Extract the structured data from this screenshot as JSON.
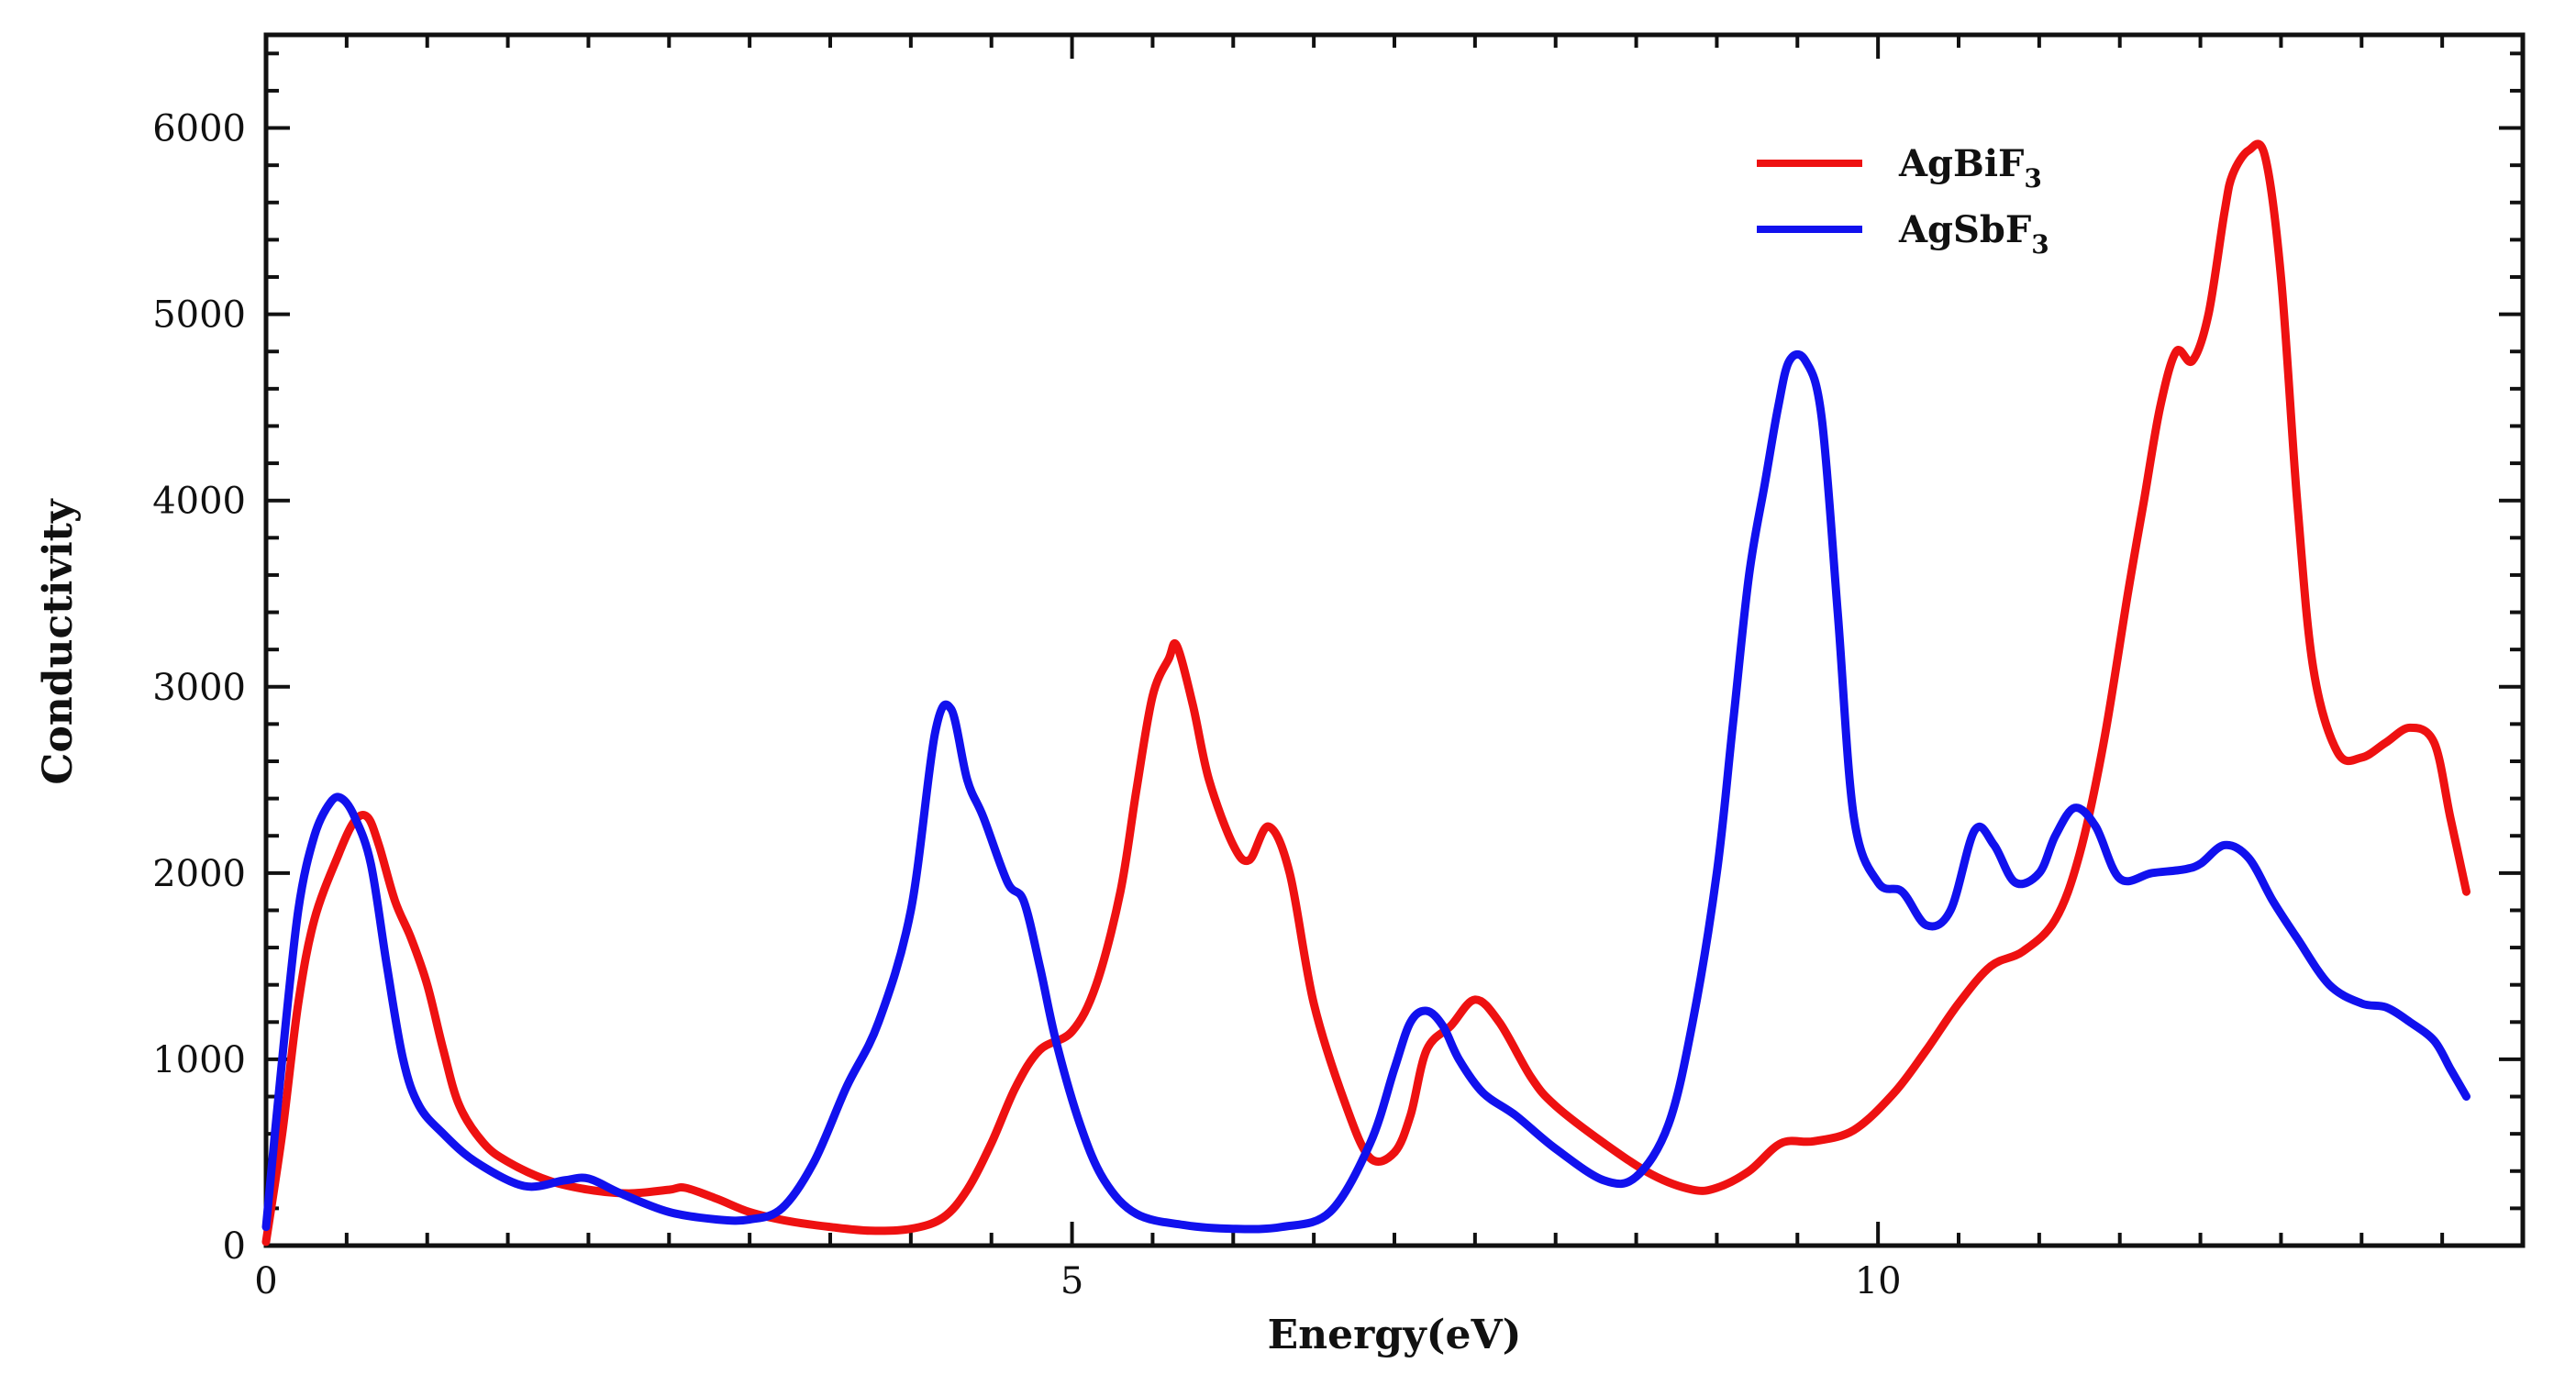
{
  "chart_data": {
    "type": "line",
    "title": "",
    "xlabel": "Energy(eV)",
    "ylabel": "Conductivity",
    "xlim": [
      0,
      14
    ],
    "ylim": [
      0,
      6500
    ],
    "xticks": [
      0,
      5,
      10
    ],
    "yticks": [
      0,
      1000,
      2000,
      3000,
      4000,
      5000,
      6000
    ],
    "xtick_labels": [
      "0",
      "5",
      "10"
    ],
    "ytick_labels": [
      "0",
      "1000",
      "2000",
      "3000",
      "4000",
      "5000",
      "6000"
    ],
    "grid": false,
    "legend_position": "top-right",
    "series": [
      {
        "name": "AgBiF3",
        "label_main": "AgBiF",
        "label_sub": "3",
        "color": "#ee1111",
        "x": [
          0,
          0.1,
          0.2,
          0.3,
          0.45,
          0.55,
          0.63,
          0.7,
          0.8,
          0.9,
          1.0,
          1.1,
          1.2,
          1.35,
          1.5,
          1.75,
          2.0,
          2.25,
          2.5,
          2.6,
          2.8,
          3.0,
          3.25,
          3.5,
          3.75,
          4.0,
          4.2,
          4.35,
          4.5,
          4.65,
          4.8,
          5.0,
          5.15,
          5.3,
          5.4,
          5.5,
          5.6,
          5.65,
          5.75,
          5.85,
          6.0,
          6.1,
          6.22,
          6.35,
          6.5,
          6.7,
          6.85,
          7.0,
          7.1,
          7.2,
          7.35,
          7.5,
          7.65,
          7.85,
          8.0,
          8.3,
          8.6,
          8.85,
          9.0,
          9.2,
          9.4,
          9.6,
          9.85,
          10.1,
          10.3,
          10.5,
          10.7,
          10.9,
          11.1,
          11.25,
          11.4,
          11.55,
          11.65,
          11.75,
          11.85,
          11.95,
          12.05,
          12.15,
          12.2,
          12.3,
          12.4,
          12.5,
          12.6,
          12.7,
          12.85,
          13.0,
          13.15,
          13.3,
          13.45,
          13.55,
          13.65
        ],
        "y": [
          20,
          600,
          1300,
          1750,
          2100,
          2280,
          2300,
          2150,
          1850,
          1650,
          1400,
          1050,
          750,
          550,
          450,
          350,
          300,
          280,
          300,
          310,
          250,
          180,
          130,
          100,
          80,
          90,
          150,
          300,
          550,
          850,
          1050,
          1150,
          1400,
          1900,
          2450,
          2950,
          3150,
          3220,
          2900,
          2500,
          2150,
          2070,
          2250,
          2000,
          1300,
          750,
          470,
          500,
          700,
          1050,
          1180,
          1320,
          1200,
          900,
          750,
          550,
          380,
          300,
          310,
          400,
          550,
          560,
          620,
          820,
          1050,
          1300,
          1500,
          1580,
          1750,
          2100,
          2700,
          3500,
          4000,
          4500,
          4800,
          4750,
          5000,
          5550,
          5750,
          5880,
          5850,
          5200,
          4000,
          3100,
          2650,
          2620,
          2700,
          2780,
          2700,
          2300,
          1900
        ]
      },
      {
        "name": "AgSbF3",
        "label_main": "AgSbF",
        "label_sub": "3",
        "color": "#1111ee",
        "x": [
          0,
          0.1,
          0.2,
          0.3,
          0.4,
          0.47,
          0.55,
          0.65,
          0.75,
          0.85,
          0.95,
          1.1,
          1.3,
          1.6,
          1.85,
          2.0,
          2.2,
          2.5,
          2.8,
          3.0,
          3.2,
          3.4,
          3.6,
          3.8,
          4.0,
          4.15,
          4.25,
          4.35,
          4.45,
          4.6,
          4.7,
          4.8,
          4.9,
          5.05,
          5.2,
          5.4,
          5.7,
          6.0,
          6.3,
          6.6,
          6.85,
          7.0,
          7.1,
          7.2,
          7.3,
          7.4,
          7.55,
          7.75,
          8.0,
          8.3,
          8.5,
          8.7,
          8.85,
          9.0,
          9.1,
          9.2,
          9.3,
          9.38,
          9.45,
          9.55,
          9.65,
          9.75,
          9.85,
          10.0,
          10.15,
          10.3,
          10.45,
          10.6,
          10.72,
          10.85,
          11.0,
          11.1,
          11.22,
          11.35,
          11.5,
          11.7,
          11.9,
          12.0,
          12.15,
          12.3,
          12.45,
          12.6,
          12.8,
          13.0,
          13.15,
          13.3,
          13.45,
          13.55,
          13.65
        ],
        "y": [
          100,
          1000,
          1800,
          2200,
          2380,
          2400,
          2300,
          2050,
          1500,
          1000,
          750,
          600,
          450,
          320,
          350,
          360,
          280,
          180,
          140,
          140,
          200,
          450,
          850,
          1200,
          1800,
          2750,
          2880,
          2500,
          2300,
          1950,
          1850,
          1500,
          1100,
          650,
          350,
          170,
          110,
          90,
          100,
          180,
          550,
          950,
          1200,
          1260,
          1180,
          1000,
          820,
          700,
          520,
          350,
          370,
          650,
          1200,
          2000,
          2800,
          3600,
          4100,
          4500,
          4750,
          4750,
          4450,
          3400,
          2300,
          1950,
          1900,
          1720,
          1800,
          2230,
          2150,
          1950,
          2000,
          2200,
          2350,
          2250,
          1970,
          2000,
          2020,
          2050,
          2150,
          2080,
          1850,
          1650,
          1400,
          1300,
          1280,
          1200,
          1100,
          950,
          800
        ]
      }
    ]
  }
}
